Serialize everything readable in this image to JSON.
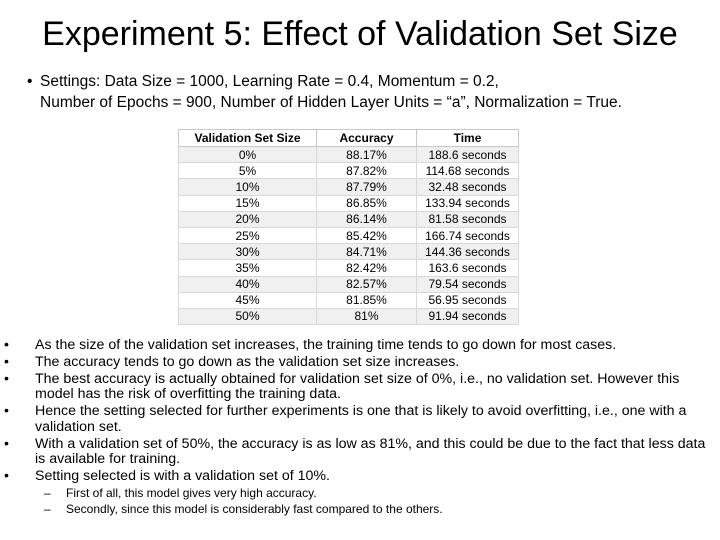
{
  "title": "Experiment 5: Effect of Validation Set Size",
  "settings": {
    "bullet": "•",
    "line1": "Settings: Data Size = 1000, Learning Rate = 0.4, Momentum = 0.2,",
    "line2": "Number of Epochs = 900, Number of Hidden Layer Units = “a”, Normalization = True."
  },
  "table": {
    "headers": [
      "Validation Set Size",
      "Accuracy",
      "Time"
    ],
    "rows": [
      [
        "0%",
        "88.17%",
        "188.6 seconds"
      ],
      [
        "5%",
        "87.82%",
        "114.68 seconds"
      ],
      [
        "10%",
        "87.79%",
        "32.48 seconds"
      ],
      [
        "15%",
        "86.85%",
        "133.94 seconds"
      ],
      [
        "20%",
        "86.14%",
        "81.58 seconds"
      ],
      [
        "25%",
        "85.42%",
        "166.74 seconds"
      ],
      [
        "30%",
        "84.71%",
        "144.36 seconds"
      ],
      [
        "35%",
        "82.42%",
        "163.6 seconds"
      ],
      [
        "40%",
        "82.57%",
        "79.54 seconds"
      ],
      [
        "45%",
        "81.85%",
        "56.95 seconds"
      ],
      [
        "50%",
        "81%",
        "91.94 seconds"
      ]
    ]
  },
  "points": {
    "bullet": "•",
    "dash": "–",
    "items": [
      "As the size of the validation set increases, the training time tends to go down for most cases.",
      "The accuracy tends to go down as the validation set size increases.",
      "The best accuracy is actually obtained for validation set size of 0%, i.e., no validation set. However this model has the risk of overfitting the training data.",
      "Hence the setting selected for further experiments is one that is likely to avoid overfitting, i.e., one with a validation set.",
      "With a validation set of 50%, the accuracy is as low as 81%, and this could be due to the fact that less data is available for training.",
      "Setting selected is with a validation set of 10%."
    ],
    "subitems": [
      "First of all, this model gives very high accuracy.",
      "Secondly, since this model is considerably fast compared to the others."
    ]
  }
}
